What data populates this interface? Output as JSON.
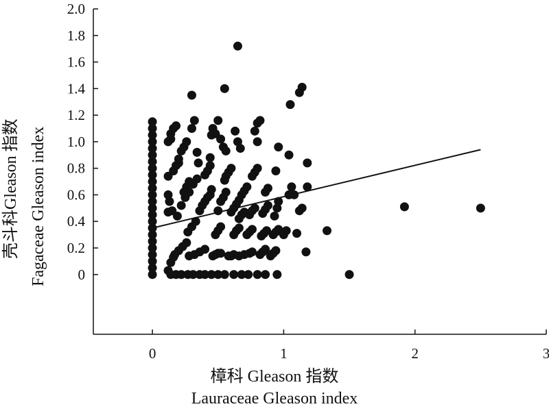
{
  "chart_data": {
    "type": "scatter",
    "xlabel": "樟科 Gleason 指数",
    "xlabel_en": "Lauraceae Gleason index",
    "ylabel": "壳斗科Gleason 指数",
    "ylabel_en": "Fagaceae Gleason index",
    "xlim": [
      -0.45,
      3
    ],
    "ylim": [
      -0.45,
      2.0
    ],
    "x_ticks": [
      0,
      1,
      2,
      3
    ],
    "y_ticks": [
      0,
      0.2,
      0.4,
      0.6,
      0.8,
      1.0,
      1.2,
      1.4,
      1.6,
      1.8,
      2.0
    ],
    "y_tick_labels": [
      "0",
      "0.2",
      "0.4",
      "0.6",
      "0.8",
      "1.0",
      "1.2",
      "1.4",
      "1.6",
      "1.8",
      "2.0"
    ],
    "x_tick_labels": [
      "0",
      "1",
      "2",
      "3"
    ],
    "grid": false,
    "trend_line": {
      "x": [
        0.0,
        2.5
      ],
      "y": [
        0.35,
        0.94
      ]
    },
    "points": [
      [
        0,
        0
      ],
      [
        0,
        0.05
      ],
      [
        0,
        0.1
      ],
      [
        0,
        0.15
      ],
      [
        0,
        0.2
      ],
      [
        0,
        0.25
      ],
      [
        0,
        0.3
      ],
      [
        0,
        0.35
      ],
      [
        0,
        0.4
      ],
      [
        0,
        0.45
      ],
      [
        0,
        0.5
      ],
      [
        0,
        0.55
      ],
      [
        0,
        0.6
      ],
      [
        0,
        0.65
      ],
      [
        0,
        0.7
      ],
      [
        0,
        0.75
      ],
      [
        0,
        0.8
      ],
      [
        0,
        0.85
      ],
      [
        0,
        0.9
      ],
      [
        0,
        0.95
      ],
      [
        0,
        1.0
      ],
      [
        0,
        1.05
      ],
      [
        0,
        1.1
      ],
      [
        0,
        1.15
      ],
      [
        0.14,
        0
      ],
      [
        0.18,
        0
      ],
      [
        0.22,
        0
      ],
      [
        0.27,
        0
      ],
      [
        0.31,
        0
      ],
      [
        0.36,
        0
      ],
      [
        0.4,
        0
      ],
      [
        0.45,
        0
      ],
      [
        0.5,
        0
      ],
      [
        0.55,
        0
      ],
      [
        0.62,
        0
      ],
      [
        0.68,
        0
      ],
      [
        0.73,
        0
      ],
      [
        0.8,
        0
      ],
      [
        0.86,
        0
      ],
      [
        0.95,
        0
      ],
      [
        1.5,
        0
      ],
      [
        0.12,
        0.03
      ],
      [
        0.14,
        0.09
      ],
      [
        0.16,
        0.13
      ],
      [
        0.12,
        0.47
      ],
      [
        0.15,
        0.48
      ],
      [
        0.13,
        0.55
      ],
      [
        0.12,
        0.6
      ],
      [
        0.12,
        1.0
      ],
      [
        0.14,
        1.06
      ],
      [
        0.16,
        1.1
      ],
      [
        0.18,
        1.12
      ],
      [
        0.14,
        1.02
      ],
      [
        0.12,
        0.74
      ],
      [
        0.16,
        0.78
      ],
      [
        0.18,
        0.82
      ],
      [
        0.2,
        0.84
      ],
      [
        0.17,
        0.15
      ],
      [
        0.2,
        0.18
      ],
      [
        0.23,
        0.21
      ],
      [
        0.26,
        0.24
      ],
      [
        0.19,
        0.44
      ],
      [
        0.22,
        0.52
      ],
      [
        0.25,
        0.58
      ],
      [
        0.28,
        0.62
      ],
      [
        0.31,
        0.68
      ],
      [
        0.34,
        0.72
      ],
      [
        0.24,
        0.62
      ],
      [
        0.26,
        0.66
      ],
      [
        0.28,
        0.7
      ],
      [
        0.2,
        0.87
      ],
      [
        0.22,
        0.93
      ],
      [
        0.24,
        0.96
      ],
      [
        0.26,
        1.0
      ],
      [
        0.27,
        0.32
      ],
      [
        0.3,
        0.36
      ],
      [
        0.33,
        0.4
      ],
      [
        0.28,
        0.14
      ],
      [
        0.32,
        0.15
      ],
      [
        0.36,
        0.17
      ],
      [
        0.4,
        0.19
      ],
      [
        0.3,
        1.1
      ],
      [
        0.32,
        1.16
      ],
      [
        0.34,
        0.92
      ],
      [
        0.35,
        0.84
      ],
      [
        0.36,
        0.48
      ],
      [
        0.38,
        0.52
      ],
      [
        0.4,
        0.55
      ],
      [
        0.42,
        0.58
      ],
      [
        0.44,
        0.6
      ],
      [
        0.45,
        0.64
      ],
      [
        0.4,
        0.75
      ],
      [
        0.42,
        0.78
      ],
      [
        0.44,
        0.82
      ],
      [
        0.44,
        0.88
      ],
      [
        0.45,
        1.05
      ],
      [
        0.46,
        1.1
      ],
      [
        0.48,
        1.06
      ],
      [
        0.46,
        0.14
      ],
      [
        0.48,
        0.15
      ],
      [
        0.5,
        0.16
      ],
      [
        0.52,
        0.16
      ],
      [
        0.48,
        0.3
      ],
      [
        0.5,
        0.33
      ],
      [
        0.52,
        0.36
      ],
      [
        0.5,
        0.48
      ],
      [
        0.52,
        0.55
      ],
      [
        0.54,
        0.58
      ],
      [
        0.56,
        0.62
      ],
      [
        0.5,
        1.16
      ],
      [
        0.52,
        1.02
      ],
      [
        0.54,
        0.96
      ],
      [
        0.56,
        0.93
      ],
      [
        0.55,
        0.71
      ],
      [
        0.56,
        0.74
      ],
      [
        0.58,
        0.77
      ],
      [
        0.6,
        0.8
      ],
      [
        0.58,
        0.14
      ],
      [
        0.6,
        0.14
      ],
      [
        0.62,
        0.15
      ],
      [
        0.6,
        0.47
      ],
      [
        0.62,
        0.5
      ],
      [
        0.64,
        0.53
      ],
      [
        0.66,
        0.56
      ],
      [
        0.62,
        0.3
      ],
      [
        0.64,
        0.33
      ],
      [
        0.66,
        0.35
      ],
      [
        0.63,
        1.08
      ],
      [
        0.65,
        1.0
      ],
      [
        0.67,
        0.95
      ],
      [
        0.66,
        0.14
      ],
      [
        0.7,
        0.15
      ],
      [
        0.74,
        0.16
      ],
      [
        0.76,
        0.17
      ],
      [
        0.66,
        0.42
      ],
      [
        0.68,
        0.45
      ],
      [
        0.7,
        0.47
      ],
      [
        0.68,
        0.6
      ],
      [
        0.7,
        0.63
      ],
      [
        0.72,
        0.66
      ],
      [
        0.72,
        0.3
      ],
      [
        0.74,
        0.32
      ],
      [
        0.76,
        0.34
      ],
      [
        0.74,
        0.45
      ],
      [
        0.76,
        0.48
      ],
      [
        0.78,
        0.5
      ],
      [
        0.76,
        0.74
      ],
      [
        0.78,
        0.77
      ],
      [
        0.8,
        0.8
      ],
      [
        0.78,
        1.08
      ],
      [
        0.8,
        1.14
      ],
      [
        0.82,
        1.16
      ],
      [
        0.8,
        1.0
      ],
      [
        0.82,
        0.15
      ],
      [
        0.84,
        0.17
      ],
      [
        0.86,
        0.19
      ],
      [
        0.83,
        0.29
      ],
      [
        0.85,
        0.31
      ],
      [
        0.87,
        0.33
      ],
      [
        0.84,
        0.46
      ],
      [
        0.86,
        0.49
      ],
      [
        0.88,
        0.52
      ],
      [
        0.86,
        0.62
      ],
      [
        0.88,
        0.65
      ],
      [
        0.9,
        0.14
      ],
      [
        0.92,
        0.16
      ],
      [
        0.94,
        0.18
      ],
      [
        0.92,
        0.3
      ],
      [
        0.94,
        0.32
      ],
      [
        0.96,
        0.34
      ],
      [
        0.93,
        0.44
      ],
      [
        0.95,
        0.5
      ],
      [
        0.96,
        0.55
      ],
      [
        0.94,
        0.78
      ],
      [
        0.96,
        0.96
      ],
      [
        1.0,
        0.3
      ],
      [
        1.02,
        0.33
      ],
      [
        1.04,
        0.6
      ],
      [
        1.06,
        0.66
      ],
      [
        1.08,
        0.6
      ],
      [
        1.04,
        0.9
      ],
      [
        1.05,
        1.28
      ],
      [
        1.1,
        0.31
      ],
      [
        1.12,
        0.48
      ],
      [
        1.14,
        0.5
      ],
      [
        1.17,
        0.17
      ],
      [
        1.18,
        0.66
      ],
      [
        1.18,
        0.84
      ],
      [
        1.12,
        1.37
      ],
      [
        1.14,
        1.41
      ],
      [
        1.33,
        0.33
      ],
      [
        0.65,
        1.72
      ],
      [
        0.55,
        1.4
      ],
      [
        0.3,
        1.35
      ],
      [
        1.92,
        0.51
      ],
      [
        2.5,
        0.5
      ]
    ]
  }
}
